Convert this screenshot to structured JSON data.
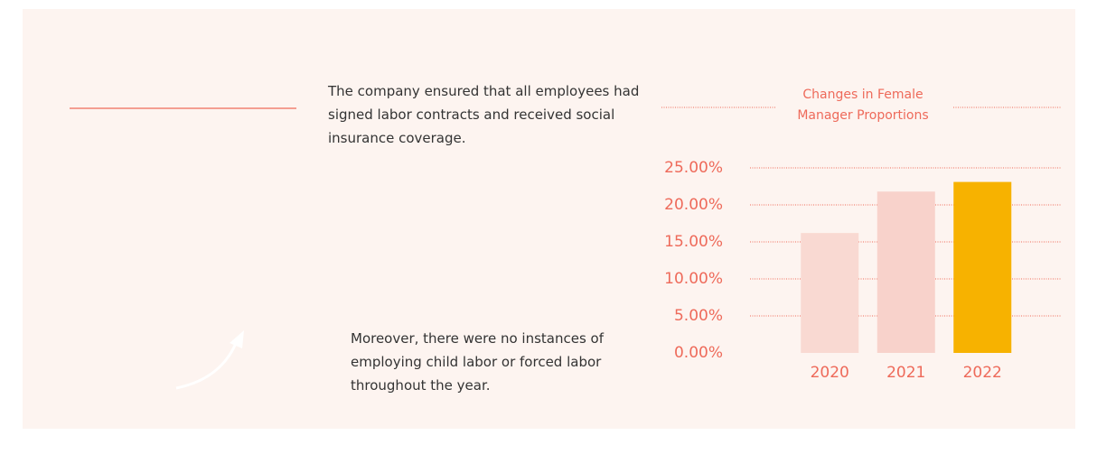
{
  "paragraphs": [
    "The company ensured that all employees had signed labor contracts and received social insurance coverage.",
    "Moreover, there were no instances of employing child labor or forced labor throughout the year."
  ],
  "chart_data": {
    "type": "bar",
    "title": "Changes in Female Manager Proportions",
    "categories": [
      "2020",
      "2021",
      "2022"
    ],
    "values": [
      16.2,
      21.8,
      23.1
    ],
    "colors": [
      "#f9d9d2",
      "#f8d2cb",
      "#f7b200"
    ],
    "ylim": [
      0,
      25
    ],
    "yticks": [
      {
        "value": 0,
        "label": "0.00%"
      },
      {
        "value": 5,
        "label": "5.00%"
      },
      {
        "value": 10,
        "label": "10.00%"
      },
      {
        "value": 15,
        "label": "15.00%"
      },
      {
        "value": 20,
        "label": "20.00%"
      },
      {
        "value": 25,
        "label": "25.00%"
      }
    ],
    "grid": true
  }
}
